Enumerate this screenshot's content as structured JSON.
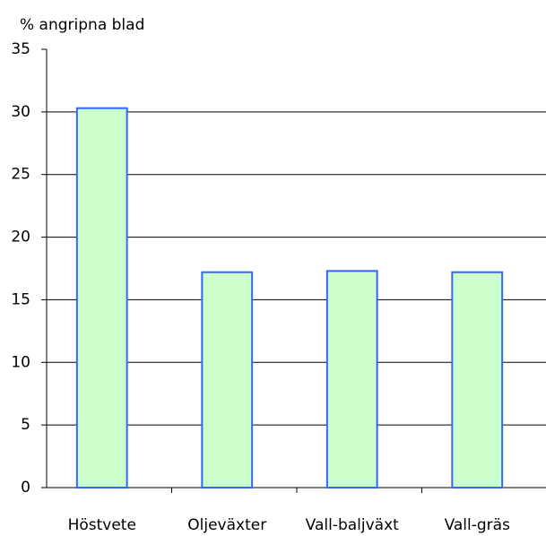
{
  "chart_data": {
    "type": "bar",
    "y_label": "% angripna blad",
    "categories": [
      "Höstvete",
      "Oljeväxter",
      "Vall-baljväxt",
      "Vall-gräs"
    ],
    "values": [
      30.3,
      17.2,
      17.3,
      17.2
    ],
    "color": "#ccffcc",
    "edge_color": "#3366ff",
    "ylim": [
      0,
      35
    ],
    "yticks": [
      0,
      5,
      10,
      15,
      20,
      25,
      30,
      35
    ],
    "grid": true
  }
}
